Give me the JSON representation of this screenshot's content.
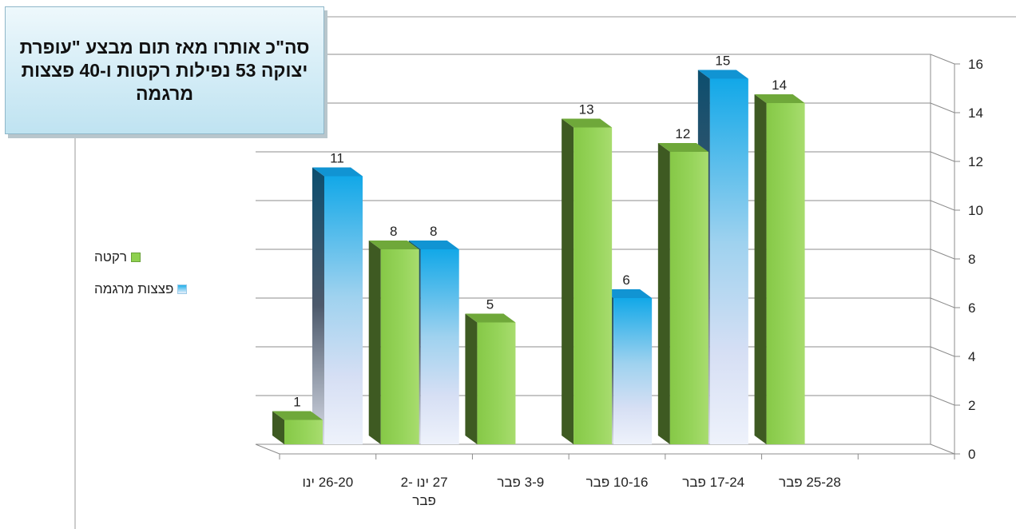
{
  "chart_data": {
    "type": "bar",
    "title": "סה\"כ אותרו מאז תום מבצע \"עופרת יצוקה 53 נפילות רקטות ו-40 פצצות מרגמה",
    "categories": [
      "26-20 ינו",
      "27 ינו -2 פבר",
      "3-9 פבר",
      "10-16 פבר",
      "17-24 פבר",
      "25-28 פבר"
    ],
    "series": [
      {
        "name": "רקטה",
        "values": [
          1,
          8,
          5,
          13,
          12,
          14
        ],
        "color": "#92d050"
      },
      {
        "name": "פצצות מרגמה",
        "values": [
          11,
          8,
          null,
          6,
          15,
          null
        ],
        "color": "#1fb0ea"
      }
    ],
    "ylim": [
      0,
      16
    ],
    "yticks": [
      0,
      2,
      4,
      6,
      8,
      10,
      12,
      14,
      16
    ],
    "grid": true,
    "legend_position": "left",
    "y_axis_side": "right"
  }
}
